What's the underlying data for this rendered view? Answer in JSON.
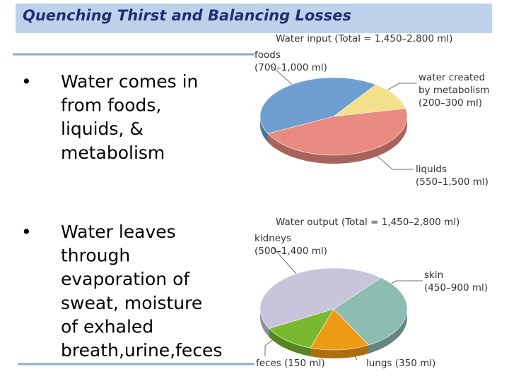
{
  "title": "Quenching Thirst and Balancing Losses",
  "bullets": [
    {
      "marker": "•",
      "lines": [
        "Water comes in",
        "from foods,",
        "liquids, &",
        "metabolism"
      ]
    },
    {
      "marker": "•",
      "lines": [
        "Water leaves",
        "through",
        "evaporation of",
        "sweat, moisture",
        "of exhaled",
        "breath,urine,feces"
      ]
    }
  ],
  "chart_data": [
    {
      "type": "pie",
      "title": "Water input (Total = 1,450–2,800 ml)",
      "categories": [
        "water created by metabolism",
        "liquids",
        "foods"
      ],
      "labels": [
        [
          "water created",
          "by metabolism",
          "(200–300 ml)"
        ],
        [
          "liquids",
          "(550–1,500 ml)"
        ],
        [
          "foods",
          "(700–1,000 ml)"
        ]
      ],
      "values": [
        12,
        46,
        42
      ],
      "colors": [
        "#f3e08a",
        "#e98b80",
        "#6f9fd0"
      ]
    },
    {
      "type": "pie",
      "title": "Water output (Total = 1,450–2,800 ml)",
      "categories": [
        "skin",
        "lungs",
        "feces",
        "kidneys"
      ],
      "labels": [
        [
          "skin",
          "(450–900 ml)"
        ],
        [
          "lungs (350 ml)"
        ],
        [
          "feces (150 ml)"
        ],
        [
          "kidneys",
          "(500–1,400 ml)"
        ]
      ],
      "values": [
        31,
        13,
        12,
        44
      ],
      "colors": [
        "#8cbcb2",
        "#ef9a14",
        "#79b92f",
        "#c9c3dc"
      ]
    }
  ]
}
